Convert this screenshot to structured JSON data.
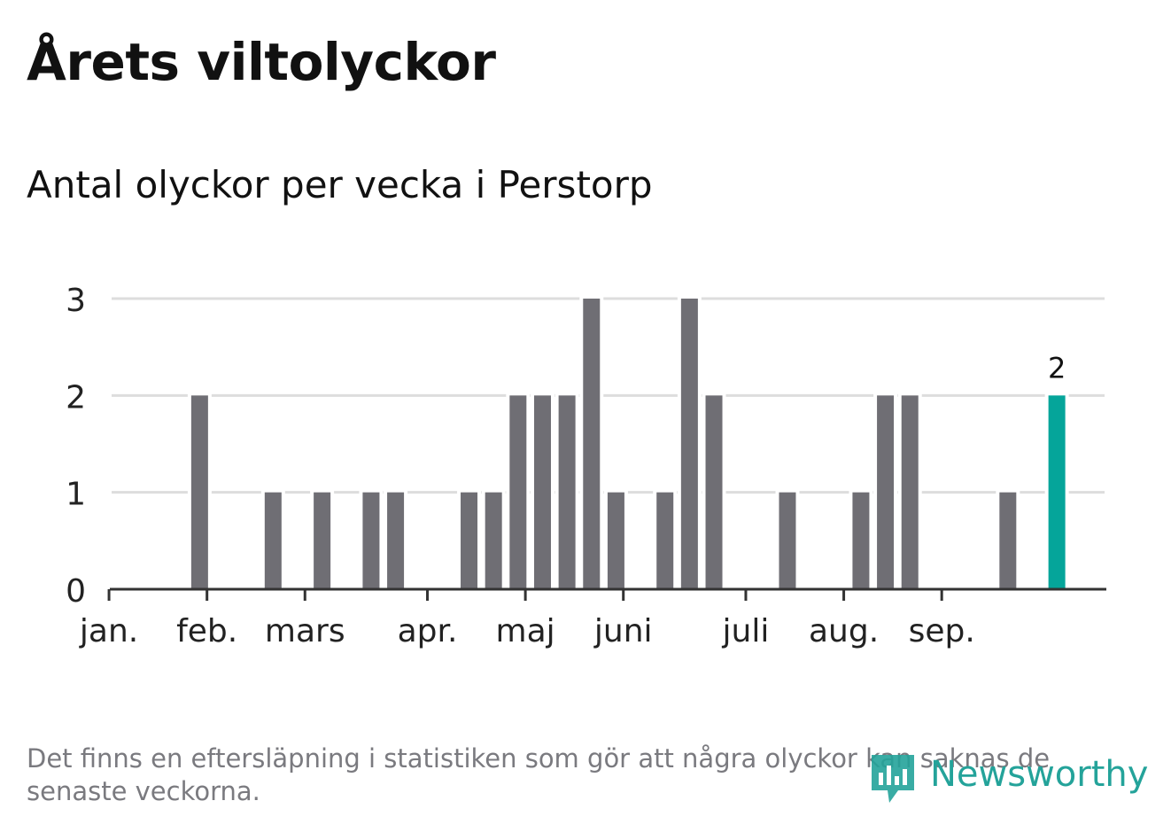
{
  "title": "Årets viltolyckor",
  "subtitle": "Antal olyckor per vecka i Perstorp",
  "note": "Det finns en eftersläpning i statistiken som gör att några olyckor kan saknas de senaste veckorna.",
  "brand": {
    "name": "Newsworthy",
    "icon": "newsworthy-logo-icon",
    "color": "#24a39a"
  },
  "colors": {
    "bar": "#6f6e74",
    "highlight": "#05a59a",
    "grid": "#dddddd",
    "axis": "#333333",
    "text": "#222222"
  },
  "chart_data": {
    "type": "bar",
    "title": "",
    "xlabel": "",
    "ylabel": "",
    "ylim": [
      0,
      3
    ],
    "yticks": [
      0,
      1,
      2,
      3
    ],
    "grid": true,
    "x_unit": "week",
    "weeks": [
      1,
      2,
      3,
      4,
      5,
      6,
      7,
      8,
      9,
      10,
      11,
      12,
      13,
      14,
      15,
      16,
      17,
      18,
      19,
      20,
      21,
      22,
      23,
      24,
      25,
      26,
      27,
      28,
      29,
      30,
      31,
      32,
      33,
      34,
      35,
      36,
      37,
      38,
      39,
      40
    ],
    "values": [
      0,
      0,
      0,
      2,
      0,
      0,
      1,
      0,
      1,
      0,
      1,
      1,
      0,
      0,
      1,
      1,
      2,
      2,
      2,
      3,
      1,
      0,
      1,
      3,
      2,
      0,
      0,
      1,
      0,
      0,
      1,
      2,
      2,
      0,
      0,
      0,
      1,
      0,
      2,
      null
    ],
    "month_labels": [
      {
        "label": "jan.",
        "week": 0.3
      },
      {
        "label": "feb.",
        "week": 4.3
      },
      {
        "label": "mars",
        "week": 8.3
      },
      {
        "label": "apr.",
        "week": 13.3
      },
      {
        "label": "maj",
        "week": 17.3
      },
      {
        "label": "juni",
        "week": 21.3
      },
      {
        "label": "juli",
        "week": 26.3
      },
      {
        "label": "aug.",
        "week": 30.3
      },
      {
        "label": "sep.",
        "week": 34.3
      }
    ],
    "highlight": {
      "week": 39,
      "value": 2,
      "label": "2"
    }
  }
}
